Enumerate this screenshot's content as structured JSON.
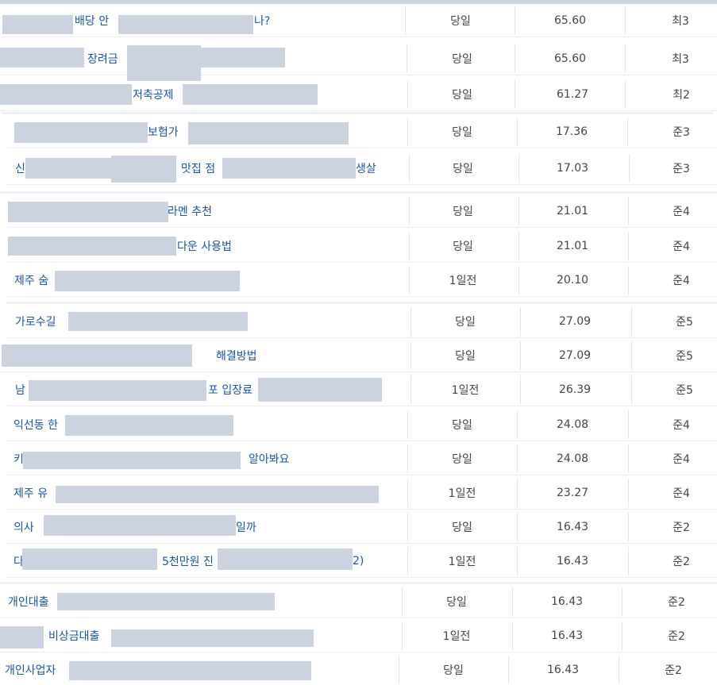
{
  "rows": [
    {
      "title": "배당 안",
      "title2": "나?",
      "date": "당일",
      "score": "65.60",
      "grade": "최3"
    },
    {
      "title": "장려금",
      "title2": "",
      "date": "당일",
      "score": "65.60",
      "grade": "최3"
    },
    {
      "title": "저축공제",
      "title2": "",
      "date": "당일",
      "score": "61.27",
      "grade": "최2"
    },
    {
      "title": "보험가",
      "title2": "",
      "date": "당일",
      "score": "17.36",
      "grade": "준3"
    },
    {
      "title": "신",
      "title2": "맛집 점",
      "title3": "생살",
      "date": "당일",
      "score": "17.03",
      "grade": "준3"
    },
    {
      "title": "라멘 추천",
      "title2": "",
      "date": "당일",
      "score": "21.01",
      "grade": "준4"
    },
    {
      "title": "다운 사용법",
      "title2": "",
      "date": "당일",
      "score": "21.01",
      "grade": "준4"
    },
    {
      "title": "제주 숨",
      "title2": "",
      "date": "1일전",
      "score": "20.10",
      "grade": "준4"
    },
    {
      "title": "가로수길",
      "title2": "",
      "date": "당일",
      "score": "27.09",
      "grade": "준5"
    },
    {
      "title": "해결방법",
      "title2": "",
      "date": "당일",
      "score": "27.09",
      "grade": "준5"
    },
    {
      "title": "남",
      "title2": "포 입장료",
      "date": "1일전",
      "score": "26.39",
      "grade": "준5"
    },
    {
      "title": "익선동 한",
      "title2": "",
      "date": "당일",
      "score": "24.08",
      "grade": "준4"
    },
    {
      "title": "키",
      "title2": "알아봐요",
      "date": "당일",
      "score": "24.08",
      "grade": "준4"
    },
    {
      "title": "제주 유",
      "title2": "",
      "date": "1일전",
      "score": "23.27",
      "grade": "준4"
    },
    {
      "title": "의사",
      "title2": "일까",
      "date": "당일",
      "score": "16.43",
      "grade": "준2"
    },
    {
      "title": "다",
      "title2": "5천만원 진",
      "title3": "2)",
      "date": "1일전",
      "score": "16.43",
      "grade": "준2"
    },
    {
      "title": "개인대출",
      "title2": "",
      "date": "당일",
      "score": "16.43",
      "grade": "준2"
    },
    {
      "title": "비상금대출",
      "title2": "",
      "date": "1일전",
      "score": "16.43",
      "grade": "준2"
    },
    {
      "title": "개인사업자",
      "title2": "",
      "date": "당일",
      "score": "16.43",
      "grade": "준2"
    }
  ]
}
